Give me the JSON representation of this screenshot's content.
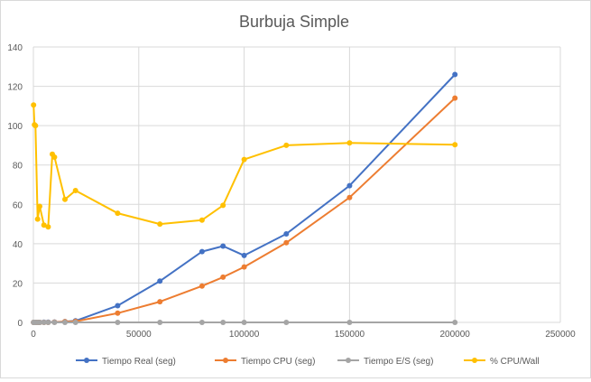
{
  "chart_data": {
    "type": "scatter",
    "title": "Burbuja Simple",
    "xlabel": "",
    "ylabel": "",
    "xlim": [
      0,
      250000
    ],
    "ylim": [
      0,
      140
    ],
    "xticks": [
      0,
      50000,
      100000,
      150000,
      200000,
      250000
    ],
    "yticks": [
      0,
      20,
      40,
      60,
      80,
      100,
      120,
      140
    ],
    "grid": true,
    "legend_position": "bottom",
    "series": [
      {
        "name": "Tiempo Real (seg)",
        "color": "#4472C4",
        "points": [
          [
            100,
            0
          ],
          [
            500,
            0
          ],
          [
            1000,
            0
          ],
          [
            2000,
            0
          ],
          [
            3000,
            0
          ],
          [
            5000,
            0.1
          ],
          [
            7000,
            0.1
          ],
          [
            10000,
            0.2
          ],
          [
            15000,
            0.4
          ],
          [
            20000,
            0.8
          ],
          [
            40000,
            8.5
          ],
          [
            60000,
            21
          ],
          [
            80000,
            36
          ],
          [
            90000,
            38.8
          ],
          [
            100000,
            34
          ],
          [
            120000,
            45
          ],
          [
            150000,
            69.5
          ],
          [
            200000,
            126
          ]
        ]
      },
      {
        "name": "Tiempo CPU (seg)",
        "color": "#ED7D31",
        "points": [
          [
            100,
            0
          ],
          [
            500,
            0
          ],
          [
            1000,
            0
          ],
          [
            2000,
            0
          ],
          [
            3000,
            0
          ],
          [
            5000,
            0
          ],
          [
            7000,
            0
          ],
          [
            10000,
            0.1
          ],
          [
            15000,
            0.3
          ],
          [
            20000,
            0.5
          ],
          [
            40000,
            4.7
          ],
          [
            60000,
            10.5
          ],
          [
            80000,
            18.5
          ],
          [
            90000,
            23
          ],
          [
            100000,
            28.2
          ],
          [
            120000,
            40.5
          ],
          [
            150000,
            63.5
          ],
          [
            200000,
            114
          ]
        ]
      },
      {
        "name": "Tiempo E/S (seg)",
        "color": "#A5A5A5",
        "points": [
          [
            100,
            0
          ],
          [
            500,
            0
          ],
          [
            1000,
            0
          ],
          [
            2000,
            0
          ],
          [
            3000,
            0
          ],
          [
            5000,
            0
          ],
          [
            7000,
            0
          ],
          [
            10000,
            0
          ],
          [
            15000,
            0
          ],
          [
            20000,
            0
          ],
          [
            40000,
            0
          ],
          [
            60000,
            0
          ],
          [
            80000,
            0
          ],
          [
            90000,
            0
          ],
          [
            100000,
            0
          ],
          [
            120000,
            0
          ],
          [
            150000,
            0
          ],
          [
            200000,
            0
          ]
        ]
      },
      {
        "name": "% CPU/Wall",
        "color": "#FFC000",
        "points": [
          [
            100,
            110.5
          ],
          [
            500,
            100.5
          ],
          [
            1000,
            100
          ],
          [
            2000,
            52.5
          ],
          [
            3000,
            59
          ],
          [
            5000,
            49.5
          ],
          [
            7000,
            48.5
          ],
          [
            9000,
            85.5
          ],
          [
            10000,
            84
          ],
          [
            15000,
            62.5
          ],
          [
            20000,
            67
          ],
          [
            40000,
            55.5
          ],
          [
            60000,
            50
          ],
          [
            80000,
            52
          ],
          [
            90000,
            59.5
          ],
          [
            100000,
            82.8
          ],
          [
            120000,
            90
          ],
          [
            150000,
            91.2
          ],
          [
            200000,
            90.3
          ]
        ]
      }
    ]
  }
}
